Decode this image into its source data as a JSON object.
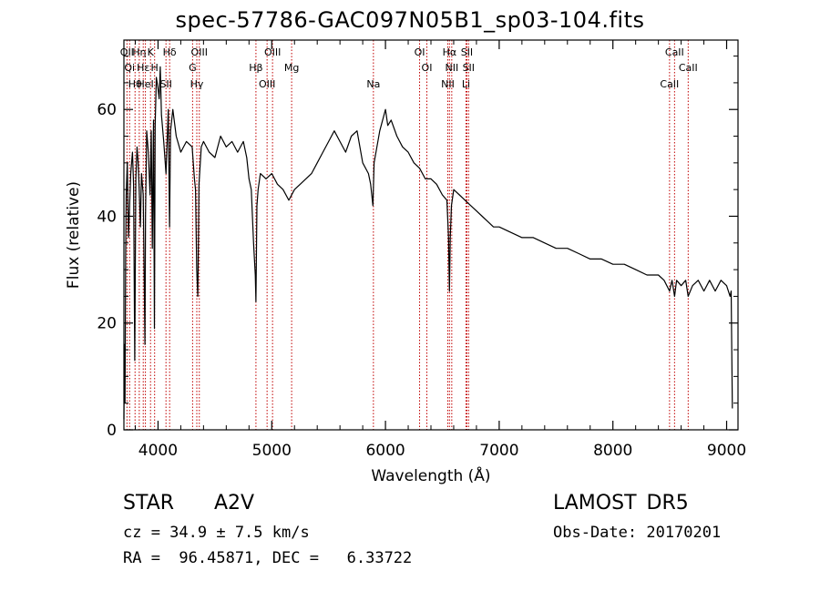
{
  "title": "spec-57786-GAC097N05B1_sp03-104.fits",
  "info": {
    "object_type": "STAR",
    "subclass": "A2V",
    "cz_text": "cz = 34.9 ± 7.5 km/s",
    "radec_text": "RA =  96.45871, DEC =   6.33722",
    "survey": "LAMOST DR5",
    "obs_date_text": "Obs-Date: 20170201"
  },
  "colors": {
    "line": "#000000",
    "marker": "#c00000",
    "background": "#ffffff"
  },
  "chart_data": {
    "type": "line",
    "title": "spec-57786-GAC097N05B1_sp03-104.fits",
    "xlabel": "Wavelength (Å)",
    "ylabel": "Flux (relative)",
    "xlim": [
      3700,
      9100
    ],
    "ylim": [
      0,
      73
    ],
    "xticks": [
      4000,
      5000,
      6000,
      7000,
      8000,
      9000
    ],
    "yticks": [
      0,
      20,
      40,
      60
    ],
    "grid": false,
    "series": [
      {
        "x": [
          3700,
          3705,
          3710,
          3715,
          3720,
          3730,
          3740,
          3760,
          3775,
          3785,
          3795,
          3805,
          3815,
          3825,
          3835,
          3845,
          3855,
          3870,
          3885,
          3890,
          3900,
          3915,
          3930,
          3940,
          3950,
          3960,
          3968,
          3975,
          3985,
          4000,
          4010,
          4020,
          4030,
          4050,
          4070,
          4090,
          4101,
          4110,
          4130,
          4160,
          4200,
          4250,
          4300,
          4320,
          4330,
          4340,
          4350,
          4360,
          4380,
          4400,
          4450,
          4500,
          4550,
          4600,
          4650,
          4700,
          4750,
          4780,
          4800,
          4820,
          4840,
          4855,
          4861,
          4870,
          4880,
          4900,
          4950,
          5000,
          5050,
          5100,
          5150,
          5200,
          5250,
          5300,
          5350,
          5400,
          5450,
          5500,
          5550,
          5600,
          5650,
          5700,
          5750,
          5800,
          5850,
          5870,
          5890,
          5900,
          5950,
          6000,
          6020,
          6050,
          6100,
          6150,
          6200,
          6250,
          6300,
          6350,
          6400,
          6450,
          6500,
          6540,
          6555,
          6563,
          6570,
          6580,
          6600,
          6650,
          6700,
          6750,
          6800,
          6850,
          6900,
          6950,
          7000,
          7100,
          7200,
          7300,
          7400,
          7500,
          7600,
          7700,
          7800,
          7900,
          8000,
          8100,
          8200,
          8300,
          8400,
          8450,
          8498,
          8520,
          8542,
          8560,
          8600,
          8640,
          8662,
          8700,
          8750,
          8800,
          8850,
          8900,
          8950,
          9000,
          9030,
          9040,
          9050
        ],
        "y": [
          2,
          16,
          5,
          32,
          44,
          50,
          36,
          48,
          52,
          46,
          13,
          47,
          53,
          50,
          45,
          38,
          48,
          44,
          16,
          40,
          56,
          52,
          44,
          56,
          34,
          58,
          19,
          57,
          66,
          64,
          62,
          68,
          59,
          54,
          48,
          60,
          38,
          56,
          60,
          55,
          52,
          54,
          53,
          47,
          45,
          30,
          25,
          46,
          53,
          54,
          52,
          51,
          55,
          53,
          54,
          52,
          54,
          51,
          47,
          45,
          35,
          29,
          24,
          42,
          45,
          48,
          47,
          48,
          46,
          45,
          43,
          45,
          46,
          47,
          48,
          50,
          52,
          54,
          56,
          54,
          52,
          55,
          56,
          50,
          48,
          46,
          42,
          50,
          56,
          60,
          57,
          58,
          55,
          53,
          52,
          50,
          49,
          47,
          47,
          46,
          44,
          43,
          36,
          26,
          36,
          42,
          45,
          44,
          43,
          42,
          41,
          40,
          39,
          38,
          38,
          37,
          36,
          36,
          35,
          34,
          34,
          33,
          32,
          32,
          31,
          31,
          30,
          29,
          29,
          28,
          26,
          28,
          25,
          28,
          27,
          28,
          25,
          27,
          28,
          26,
          28,
          26,
          28,
          27,
          25,
          26,
          4
        ]
      }
    ],
    "lines": [
      {
        "wavelength": 3727,
        "labels": [
          "OII"
        ]
      },
      {
        "wavelength": 3750,
        "labels": [
          "Qi"
        ]
      },
      {
        "wavelength": 3798,
        "labels": [
          "Hθ"
        ]
      },
      {
        "wavelength": 3835,
        "labels": [
          "Hη"
        ]
      },
      {
        "wavelength": 3870,
        "labels": [
          "Hε"
        ]
      },
      {
        "wavelength": 3889,
        "labels": [
          "HeI"
        ]
      },
      {
        "wavelength": 3934,
        "labels": [
          "K"
        ]
      },
      {
        "wavelength": 3970,
        "labels": [
          "H"
        ]
      },
      {
        "wavelength": 4070,
        "labels": [
          "SII"
        ]
      },
      {
        "wavelength": 4102,
        "labels": [
          "Hδ"
        ]
      },
      {
        "wavelength": 4304,
        "labels": [
          "G"
        ]
      },
      {
        "wavelength": 4341,
        "labels": [
          "Hγ"
        ]
      },
      {
        "wavelength": 4363,
        "labels": [
          "OIII"
        ]
      },
      {
        "wavelength": 4861,
        "labels": [
          "Hβ"
        ]
      },
      {
        "wavelength": 4959,
        "labels": [
          "OIII"
        ]
      },
      {
        "wavelength": 5007,
        "labels": [
          "OIII"
        ]
      },
      {
        "wavelength": 5175,
        "labels": [
          "Mg"
        ]
      },
      {
        "wavelength": 5894,
        "labels": [
          "Na"
        ]
      },
      {
        "wavelength": 6300,
        "labels": [
          "OI"
        ]
      },
      {
        "wavelength": 6364,
        "labels": [
          "OI"
        ]
      },
      {
        "wavelength": 6548,
        "labels": [
          "NII"
        ]
      },
      {
        "wavelength": 6563,
        "labels": [
          "Hα"
        ]
      },
      {
        "wavelength": 6583,
        "labels": [
          "NII"
        ]
      },
      {
        "wavelength": 6708,
        "labels": [
          "Li"
        ]
      },
      {
        "wavelength": 6716,
        "labels": [
          "SII"
        ]
      },
      {
        "wavelength": 6731,
        "labels": [
          "SII"
        ]
      },
      {
        "wavelength": 8498,
        "labels": [
          "CaII"
        ]
      },
      {
        "wavelength": 8542,
        "labels": [
          "CaII"
        ]
      },
      {
        "wavelength": 8662,
        "labels": [
          "CaII"
        ]
      }
    ]
  }
}
